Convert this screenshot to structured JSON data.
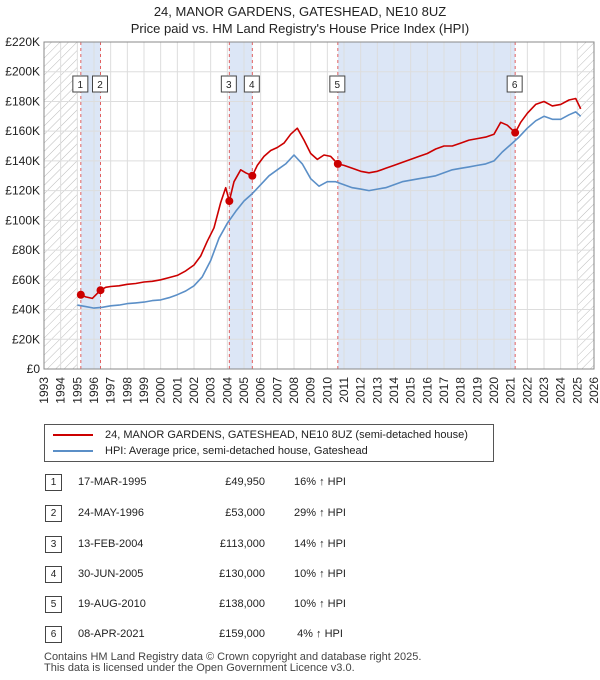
{
  "title_line1": "24, MANOR GARDENS, GATESHEAD, NE10 8UZ",
  "title_line2": "Price paid vs. HM Land Registry's House Price Index (HPI)",
  "legend": {
    "property": "24, MANOR GARDENS, GATESHEAD, NE10 8UZ (semi-detached house)",
    "hpi": "HPI: Average price, semi-detached house, Gateshead"
  },
  "colors": {
    "property": "#cc0000",
    "hpi": "#5b8fc7",
    "shade": "#dce6f6",
    "marker_line": "#e06060",
    "grid": "#dddddd"
  },
  "sales": [
    {
      "num": "1",
      "date": "17-MAR-1995",
      "price": "£49,950",
      "hpi": "16% ↑ HPI"
    },
    {
      "num": "2",
      "date": "24-MAY-1996",
      "price": "£53,000",
      "hpi": "29% ↑ HPI"
    },
    {
      "num": "3",
      "date": "13-FEB-2004",
      "price": "£113,000",
      "hpi": "14% ↑ HPI"
    },
    {
      "num": "4",
      "date": "30-JUN-2005",
      "price": "£130,000",
      "hpi": "10% ↑ HPI"
    },
    {
      "num": "5",
      "date": "19-AUG-2010",
      "price": "£138,000",
      "hpi": "10% ↑ HPI"
    },
    {
      "num": "6",
      "date": "08-APR-2021",
      "price": "£159,000",
      "hpi": "4% ↑ HPI"
    }
  ],
  "footer": {
    "line1": "Contains HM Land Registry data © Crown copyright and database right 2025.",
    "line2": "This data is licensed under the Open Government Licence v3.0."
  },
  "chart_data": {
    "type": "line",
    "xlim": [
      1993,
      2026
    ],
    "ylim": [
      0,
      220000
    ],
    "x_ticks": [
      1993,
      1994,
      1995,
      1996,
      1997,
      1998,
      1999,
      2000,
      2001,
      2002,
      2003,
      2004,
      2005,
      2006,
      2007,
      2008,
      2009,
      2010,
      2011,
      2012,
      2013,
      2014,
      2015,
      2016,
      2017,
      2018,
      2019,
      2020,
      2021,
      2022,
      2023,
      2024,
      2025,
      2026
    ],
    "y_ticks": [
      {
        "value": 0,
        "label": "£0"
      },
      {
        "value": 20000,
        "label": "£20K"
      },
      {
        "value": 40000,
        "label": "£40K"
      },
      {
        "value": 60000,
        "label": "£60K"
      },
      {
        "value": 80000,
        "label": "£80K"
      },
      {
        "value": 100000,
        "label": "£100K"
      },
      {
        "value": 120000,
        "label": "£120K"
      },
      {
        "value": 140000,
        "label": "£140K"
      },
      {
        "value": 160000,
        "label": "£160K"
      },
      {
        "value": 180000,
        "label": "£180K"
      },
      {
        "value": 200000,
        "label": "£200K"
      },
      {
        "value": 220000,
        "label": "£220K"
      }
    ],
    "grid": true,
    "hatched_ranges": [
      [
        1993,
        1995.0
      ],
      [
        2025.0,
        2026
      ]
    ],
    "ownership_ranges": [
      [
        1995.21,
        1996.39
      ],
      [
        2004.12,
        2005.5
      ],
      [
        2010.63,
        2021.27
      ]
    ],
    "series": [
      {
        "name": "24, MANOR GARDENS, GATESHEAD, NE10 8UZ (semi-detached house)",
        "points": [
          [
            1995.21,
            49950
          ],
          [
            1995.5,
            48500
          ],
          [
            1995.9,
            47500
          ],
          [
            1996.39,
            53000
          ],
          [
            1996.7,
            55000
          ],
          [
            1997.0,
            55500
          ],
          [
            1997.5,
            56000
          ],
          [
            1998.0,
            57000
          ],
          [
            1998.5,
            57500
          ],
          [
            1999.0,
            58500
          ],
          [
            1999.5,
            59000
          ],
          [
            2000.0,
            60000
          ],
          [
            2000.5,
            61500
          ],
          [
            2001.0,
            63000
          ],
          [
            2001.5,
            66000
          ],
          [
            2002.0,
            70000
          ],
          [
            2002.4,
            76000
          ],
          [
            2002.8,
            86000
          ],
          [
            2003.2,
            95000
          ],
          [
            2003.6,
            112000
          ],
          [
            2003.9,
            122000
          ],
          [
            2004.12,
            113000
          ],
          [
            2004.4,
            126000
          ],
          [
            2004.8,
            134000
          ],
          [
            2005.1,
            132000
          ],
          [
            2005.5,
            130000
          ],
          [
            2005.8,
            137000
          ],
          [
            2006.2,
            143000
          ],
          [
            2006.6,
            147000
          ],
          [
            2007.0,
            149000
          ],
          [
            2007.4,
            152000
          ],
          [
            2007.8,
            158000
          ],
          [
            2008.2,
            162000
          ],
          [
            2008.6,
            154000
          ],
          [
            2009.0,
            145000
          ],
          [
            2009.4,
            141000
          ],
          [
            2009.8,
            144000
          ],
          [
            2010.2,
            143000
          ],
          [
            2010.63,
            138000
          ],
          [
            2011.0,
            137000
          ],
          [
            2011.5,
            135000
          ],
          [
            2012.0,
            133000
          ],
          [
            2012.5,
            132000
          ],
          [
            2013.0,
            133000
          ],
          [
            2013.5,
            135000
          ],
          [
            2014.0,
            137000
          ],
          [
            2014.5,
            139000
          ],
          [
            2015.0,
            141000
          ],
          [
            2015.5,
            143000
          ],
          [
            2016.0,
            145000
          ],
          [
            2016.5,
            148000
          ],
          [
            2017.0,
            150000
          ],
          [
            2017.5,
            150000
          ],
          [
            2018.0,
            152000
          ],
          [
            2018.5,
            154000
          ],
          [
            2019.0,
            155000
          ],
          [
            2019.5,
            156000
          ],
          [
            2020.0,
            158000
          ],
          [
            2020.4,
            166000
          ],
          [
            2020.8,
            164000
          ],
          [
            2021.27,
            159000
          ],
          [
            2021.6,
            166000
          ],
          [
            2022.0,
            172000
          ],
          [
            2022.5,
            178000
          ],
          [
            2023.0,
            180000
          ],
          [
            2023.5,
            177000
          ],
          [
            2024.0,
            178000
          ],
          [
            2024.5,
            181000
          ],
          [
            2024.9,
            182000
          ],
          [
            2025.2,
            175000
          ]
        ]
      },
      {
        "name": "HPI: Average price, semi-detached house, Gateshead",
        "points": [
          [
            1995.0,
            43000
          ],
          [
            1995.5,
            42000
          ],
          [
            1996.0,
            41000
          ],
          [
            1996.5,
            41500
          ],
          [
            1997.0,
            42500
          ],
          [
            1997.5,
            43000
          ],
          [
            1998.0,
            44000
          ],
          [
            1998.5,
            44500
          ],
          [
            1999.0,
            45000
          ],
          [
            1999.5,
            46000
          ],
          [
            2000.0,
            46500
          ],
          [
            2000.5,
            48000
          ],
          [
            2001.0,
            50000
          ],
          [
            2001.5,
            52500
          ],
          [
            2002.0,
            56000
          ],
          [
            2002.5,
            62000
          ],
          [
            2003.0,
            73000
          ],
          [
            2003.5,
            88000
          ],
          [
            2004.0,
            98000
          ],
          [
            2004.5,
            106000
          ],
          [
            2005.0,
            113000
          ],
          [
            2005.5,
            118000
          ],
          [
            2006.0,
            124000
          ],
          [
            2006.5,
            130000
          ],
          [
            2007.0,
            134000
          ],
          [
            2007.5,
            138000
          ],
          [
            2008.0,
            144000
          ],
          [
            2008.5,
            138000
          ],
          [
            2009.0,
            128000
          ],
          [
            2009.5,
            123000
          ],
          [
            2010.0,
            126000
          ],
          [
            2010.5,
            126000
          ],
          [
            2011.0,
            124000
          ],
          [
            2011.5,
            122000
          ],
          [
            2012.0,
            121000
          ],
          [
            2012.5,
            120000
          ],
          [
            2013.0,
            121000
          ],
          [
            2013.5,
            122000
          ],
          [
            2014.0,
            124000
          ],
          [
            2014.5,
            126000
          ],
          [
            2015.0,
            127000
          ],
          [
            2015.5,
            128000
          ],
          [
            2016.0,
            129000
          ],
          [
            2016.5,
            130000
          ],
          [
            2017.0,
            132000
          ],
          [
            2017.5,
            134000
          ],
          [
            2018.0,
            135000
          ],
          [
            2018.5,
            136000
          ],
          [
            2019.0,
            137000
          ],
          [
            2019.5,
            138000
          ],
          [
            2020.0,
            140000
          ],
          [
            2020.5,
            146000
          ],
          [
            2021.0,
            151000
          ],
          [
            2021.5,
            156000
          ],
          [
            2022.0,
            162000
          ],
          [
            2022.5,
            167000
          ],
          [
            2023.0,
            170000
          ],
          [
            2023.5,
            168000
          ],
          [
            2024.0,
            168000
          ],
          [
            2024.5,
            171000
          ],
          [
            2024.9,
            173000
          ],
          [
            2025.2,
            170000
          ]
        ]
      }
    ],
    "sale_points": [
      {
        "num": "1",
        "x": 1995.21,
        "y": 49950
      },
      {
        "num": "2",
        "x": 1996.39,
        "y": 53000
      },
      {
        "num": "3",
        "x": 2004.12,
        "y": 113000
      },
      {
        "num": "4",
        "x": 2005.5,
        "y": 130000
      },
      {
        "num": "5",
        "x": 2010.63,
        "y": 138000
      },
      {
        "num": "6",
        "x": 2021.27,
        "y": 159000
      }
    ]
  }
}
